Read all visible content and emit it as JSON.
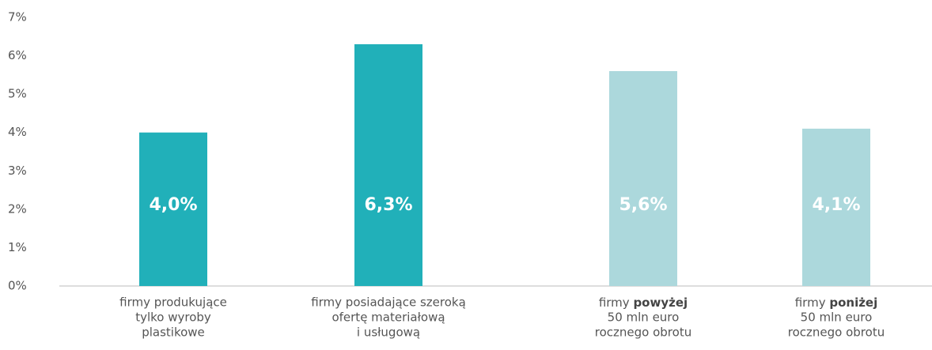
{
  "chart_data": {
    "type": "bar",
    "categories": [
      [
        "firmy produkujące",
        "tylko wyroby",
        "plastikowe"
      ],
      [
        "firmy posiadające szeroką",
        "ofertę materiałową",
        "i usługową"
      ],
      [
        "firmy powyżej",
        "50 mln euro",
        "rocznego obrotu"
      ],
      [
        "firmy poniżej",
        "50 mln euro",
        "rocznego obrotu"
      ]
    ],
    "bold_words": [
      null,
      null,
      "powyżej",
      "poniżej"
    ],
    "values": [
      4.0,
      6.3,
      5.6,
      4.1
    ],
    "value_labels": [
      "4,0%",
      "6,3%",
      "5,6%",
      "4,1%"
    ],
    "colors": [
      "#21b0b9",
      "#21b0b9",
      "#acd8dc",
      "#acd8dc"
    ],
    "ylim": [
      0,
      7
    ],
    "yticks": [
      {
        "value": 0,
        "label": "0%"
      },
      {
        "value": 1,
        "label": "1%"
      },
      {
        "value": 2,
        "label": "2%"
      },
      {
        "value": 3,
        "label": "3%"
      },
      {
        "value": 4,
        "label": "4%"
      },
      {
        "value": 5,
        "label": "5%"
      },
      {
        "value": 6,
        "label": "6%"
      },
      {
        "value": 7,
        "label": "7%"
      }
    ],
    "grid": false
  }
}
